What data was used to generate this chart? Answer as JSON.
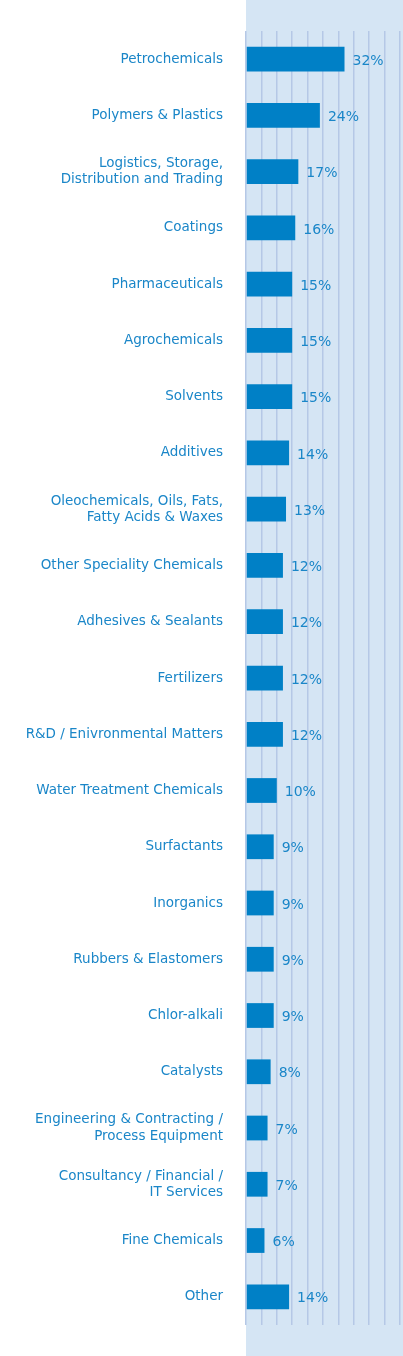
{
  "chart_data": {
    "type": "bar",
    "orientation": "horizontal",
    "color": "#0080c6",
    "categories": [
      "Petrochemicals",
      "Polymers & Plastics",
      "Logistics, Storage, Distribution and Trading",
      "Coatings",
      "Pharmaceuticals",
      "Agrochemicals",
      "Solvents",
      "Additives",
      "Oleochemicals, Oils, Fats, Fatty Acids & Waxes",
      "Other Speciality Chemicals",
      "Adhesives & Sealants",
      "Fertilizers",
      "R&D / Enivronmental Matters",
      "Water Treatment Chemicals",
      "Surfactants",
      "Inorganics",
      "Rubbers & Elastomers",
      "Chlor-alkali",
      "Catalysts",
      "Engineering & Contracting / Process Equipment",
      "Consultancy / Financial / IT Services",
      "Fine Chemicals",
      "Other"
    ],
    "values": [
      32,
      24,
      17,
      16,
      15,
      15,
      15,
      14,
      13,
      12,
      12,
      12,
      12,
      10,
      9,
      9,
      9,
      9,
      8,
      7,
      7,
      6,
      14
    ],
    "value_labels": [
      "32%",
      "24%",
      "17%",
      "16%",
      "15%",
      "15%",
      "15%",
      "14%",
      "13%",
      "12%",
      "12%",
      "12%",
      "12%",
      "10%",
      "9%",
      "9%",
      "9%",
      "9%",
      "8%",
      "7%",
      "7%",
      "6%",
      "14%"
    ],
    "xlim": [
      0,
      51
    ],
    "xticks": [
      {
        "value": 0,
        "label": null
      },
      {
        "value": 5,
        "label": null
      },
      {
        "value": 10,
        "label": null
      },
      {
        "value": 15,
        "label": null
      },
      {
        "value": 20,
        "label": null
      },
      {
        "value": 25,
        "label": null
      },
      {
        "value": 30,
        "label": null
      },
      {
        "value": 35,
        "label": null
      },
      {
        "value": 40,
        "label": null
      },
      {
        "value": 45,
        "label": null
      },
      {
        "value": 50,
        "label": null
      }
    ],
    "tick_labels": "y",
    "grid": "x",
    "legend": false
  }
}
